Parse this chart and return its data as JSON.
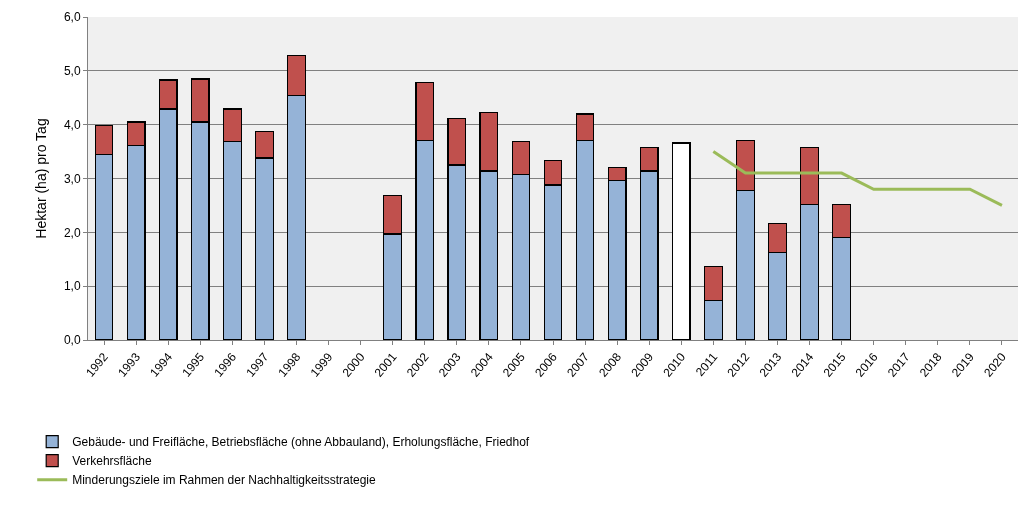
{
  "chart_data": {
    "type": "bar",
    "stacked": true,
    "ylabel": "Hektar (ha) pro Tag",
    "categories": [
      "1992",
      "1993",
      "1994",
      "1995",
      "1996",
      "1997",
      "1998",
      "1999",
      "2000",
      "2001",
      "2002",
      "2003",
      "2004",
      "2005",
      "2006",
      "2007",
      "2008",
      "2009",
      "2010",
      "2011",
      "2012",
      "2013",
      "2014",
      "2015",
      "2016",
      "2017",
      "2018",
      "2019",
      "2020"
    ],
    "series": [
      {
        "name": "Gebäude- und Freifläche, Betriebsfläche (ohne Abbauland), Erholungsfläche, Friedhof",
        "color": "#95b3d7",
        "colors": [
          "#95b3d7",
          "#95b3d7",
          "#95b3d7",
          "#95b3d7",
          "#95b3d7",
          "#95b3d7",
          "#95b3d7",
          "#95b3d7",
          "#95b3d7",
          "#95b3d7",
          "#95b3d7",
          "#95b3d7",
          "#95b3d7",
          "#95b3d7",
          "#95b3d7",
          "#95b3d7",
          "#95b3d7",
          "#95b3d7",
          "#ffffff",
          "#95b3d7",
          "#95b3d7",
          "#95b3d7",
          "#95b3d7",
          "#95b3d7",
          "#95b3d7",
          "#95b3d7",
          "#95b3d7",
          "#95b3d7",
          "#95b3d7"
        ],
        "values": [
          3.44,
          3.61,
          4.29,
          4.05,
          3.68,
          3.38,
          4.54,
          null,
          null,
          1.97,
          3.7,
          3.25,
          3.14,
          3.07,
          2.88,
          3.7,
          2.96,
          3.14,
          3.66,
          0.74,
          2.77,
          1.62,
          2.51,
          1.91,
          null,
          null,
          null,
          null,
          null
        ]
      },
      {
        "name": "Verkehrsfläche",
        "color": "#c0504d",
        "values": [
          0.54,
          0.44,
          0.54,
          0.8,
          0.61,
          0.49,
          0.74,
          null,
          null,
          0.71,
          1.08,
          0.86,
          1.08,
          0.61,
          0.45,
          0.5,
          0.24,
          0.43,
          null,
          0.62,
          0.93,
          0.55,
          1.06,
          0.6,
          null,
          null,
          null,
          null,
          null
        ]
      },
      {
        "name": "Minderungsziele im Rahmen der Nachhaltigkeitsstrategie",
        "type": "line",
        "color": "#9bbb59",
        "values": [
          null,
          null,
          null,
          null,
          null,
          null,
          null,
          null,
          null,
          null,
          null,
          null,
          null,
          null,
          null,
          null,
          null,
          null,
          null,
          3.5,
          3.1,
          3.1,
          3.1,
          3.1,
          2.8,
          2.8,
          2.8,
          2.8,
          2.5
        ]
      }
    ],
    "ylim": [
      0,
      6
    ],
    "yticks": [
      {
        "value": 0,
        "label": "0,0"
      },
      {
        "value": 1,
        "label": "1,0"
      },
      {
        "value": 2,
        "label": "2,0"
      },
      {
        "value": 3,
        "label": "3,0"
      },
      {
        "value": 4,
        "label": "4,0"
      },
      {
        "value": 5,
        "label": "5,0"
      },
      {
        "value": 6,
        "label": "6,0"
      }
    ],
    "grid": "y",
    "legend": "bottom",
    "marker": "none",
    "line_style": "solid"
  }
}
